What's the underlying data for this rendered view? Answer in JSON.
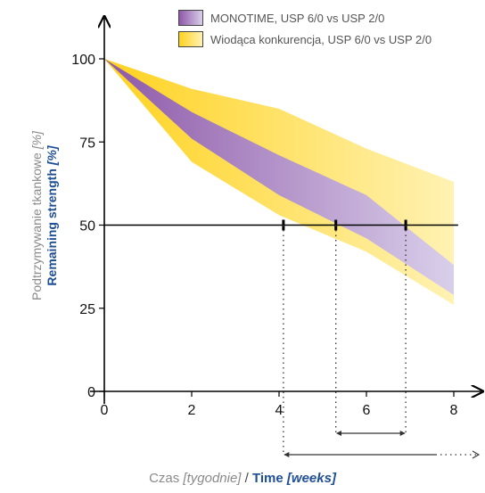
{
  "chart_data": {
    "type": "area",
    "x_ticks": [
      0,
      2,
      4,
      6,
      8
    ],
    "y_ticks": [
      0,
      25,
      50,
      75,
      100
    ],
    "xlim": [
      0,
      8.5
    ],
    "ylim": [
      0,
      110
    ],
    "grid": false,
    "legend_position": "top",
    "ylabel_pl": "Podtrzymywanie tkankowe",
    "ylabel_pl_unit": "[%]",
    "ylabel_en": "Remaining strength",
    "ylabel_en_unit": "[%]",
    "xlabel_pl": "Czas",
    "xlabel_pl_unit": "[tygodnie]",
    "xlabel_separator": "/",
    "xlabel_en": "Time",
    "xlabel_en_unit": "[weeks]",
    "reference_line_y": 50,
    "crossing_markers_x": [
      4.1,
      5.3,
      6.9
    ],
    "series": [
      {
        "name": "Wiodąca konkurencja, USP 6/0 vs USP 2/0",
        "color": "#ffe14d",
        "x": [
          0,
          2,
          4,
          6,
          8
        ],
        "upper": [
          100,
          91,
          85,
          73,
          63
        ],
        "lower": [
          100,
          69,
          53,
          42,
          26
        ]
      },
      {
        "name": "MONOTIME, USP 6/0 vs USP 2/0",
        "color": "#9b6ab5",
        "x": [
          0,
          2,
          4,
          6,
          8
        ],
        "upper": [
          100,
          84,
          71,
          59,
          38
        ],
        "lower": [
          100,
          76,
          59,
          46,
          29
        ]
      }
    ]
  },
  "legend": {
    "item1": "MONOTIME, USP 6/0 vs USP 2/0",
    "item2": "Wiodąca konkurencja, USP 6/0 vs USP 2/0"
  }
}
